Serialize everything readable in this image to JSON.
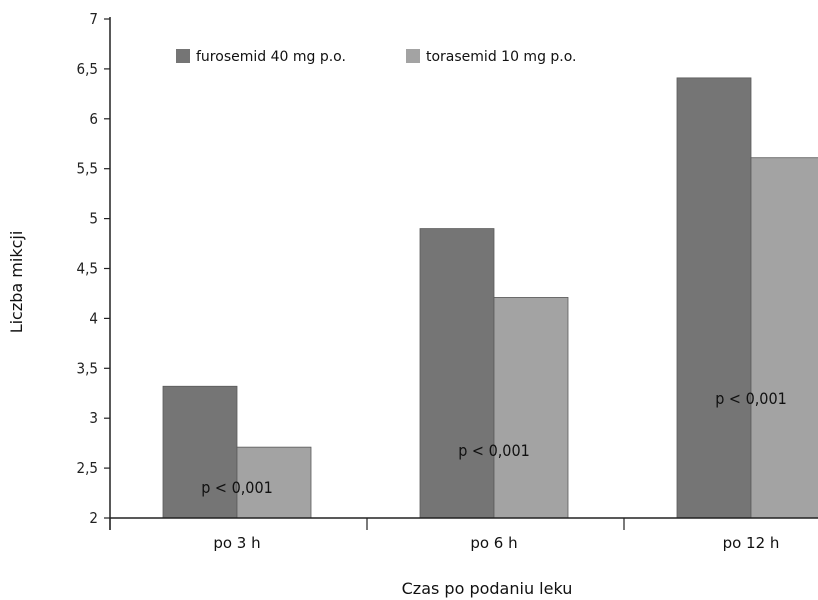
{
  "chart_data": {
    "type": "bar",
    "categories": [
      "po 3 h",
      "po 6 h",
      "po 12 h"
    ],
    "series": [
      {
        "name": "furosemid 40 mg p.o.",
        "values": [
          3.32,
          4.9,
          6.41
        ],
        "color": "#757575"
      },
      {
        "name": "torasemid 10 mg p.o.",
        "values": [
          2.71,
          4.21,
          5.61
        ],
        "color": "#a3a3a3"
      }
    ],
    "xlabel": "Czas po podaniu leku",
    "ylabel": "Liczba mikcji",
    "ylim": [
      2,
      7
    ],
    "yticks": [
      2,
      2.5,
      3,
      3.5,
      4,
      4.5,
      5,
      5.5,
      6,
      6.5,
      7
    ],
    "ytick_labels": [
      "2",
      "2,5",
      "3",
      "3,5",
      "4",
      "4,5",
      "5",
      "5,5",
      "6",
      "6,5",
      "7"
    ],
    "annotations": [
      "p < 0,001",
      "p < 0,001",
      "p < 0,001"
    ],
    "annotation_values": [
      2.25,
      2.62,
      3.14
    ],
    "legend_position": "top",
    "grid": false
  }
}
